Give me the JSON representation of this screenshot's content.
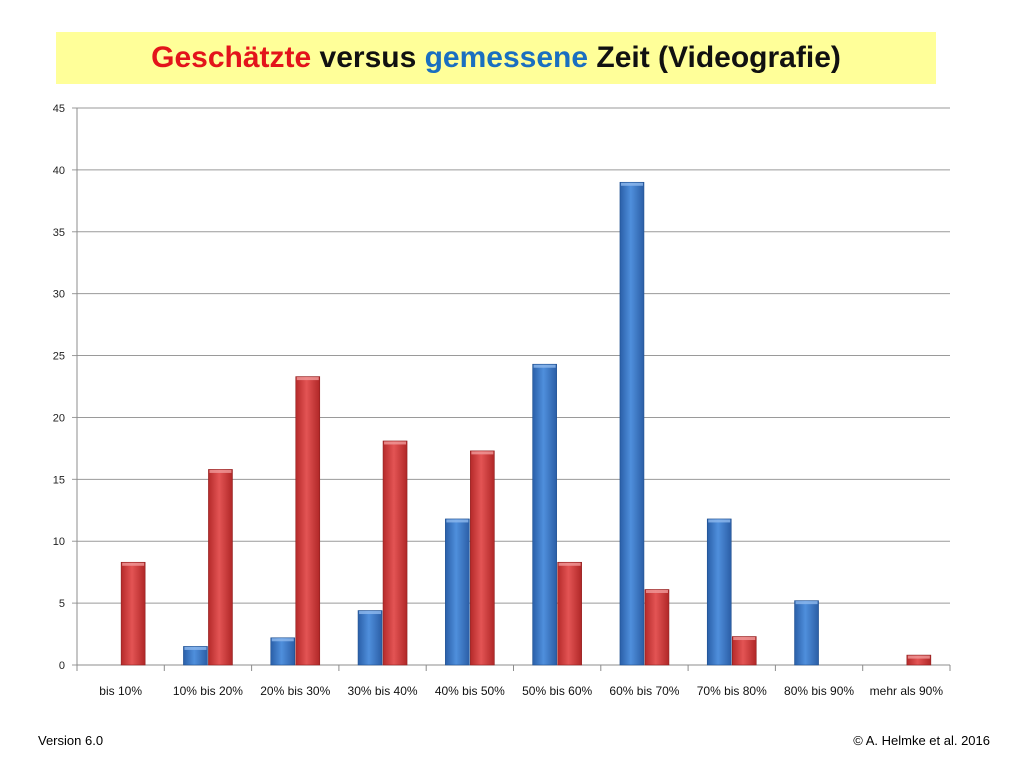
{
  "title": {
    "parts": [
      {
        "text": "Geschätzte",
        "color": "#e3141b"
      },
      {
        "text": " versus ",
        "color": "#111111"
      },
      {
        "text": "gemessene",
        "color": "#1a6fc0"
      },
      {
        "text": " Zeit (Videografie)",
        "color": "#111111"
      }
    ]
  },
  "chart_data": {
    "type": "bar",
    "categories": [
      "bis 10%",
      "10% bis 20%",
      "20% bis 30%",
      "30% bis 40%",
      "40% bis 50%",
      "50% bis 60%",
      "60% bis 70%",
      "70% bis 80%",
      "80% bis 90%",
      "mehr als 90%"
    ],
    "series": [
      {
        "values": [
          0,
          1.5,
          2.2,
          4.4,
          11.8,
          24.3,
          39.0,
          11.8,
          5.2,
          0
        ],
        "color": "#3a78c9"
      },
      {
        "values": [
          8.3,
          15.8,
          23.3,
          18.1,
          17.3,
          8.3,
          6.1,
          2.3,
          0,
          0.8
        ],
        "color": "#d63a3a"
      }
    ],
    "yticks": [
      "0",
      "5",
      "10",
      "15",
      "20",
      "25",
      "30",
      "35",
      "40",
      "45"
    ],
    "ylim": [
      0,
      45
    ],
    "grid": true,
    "title": "",
    "xlabel": "",
    "ylabel": ""
  },
  "footer": {
    "left": "Version 6.0",
    "right": "© A. Helmke et al. 2016"
  }
}
